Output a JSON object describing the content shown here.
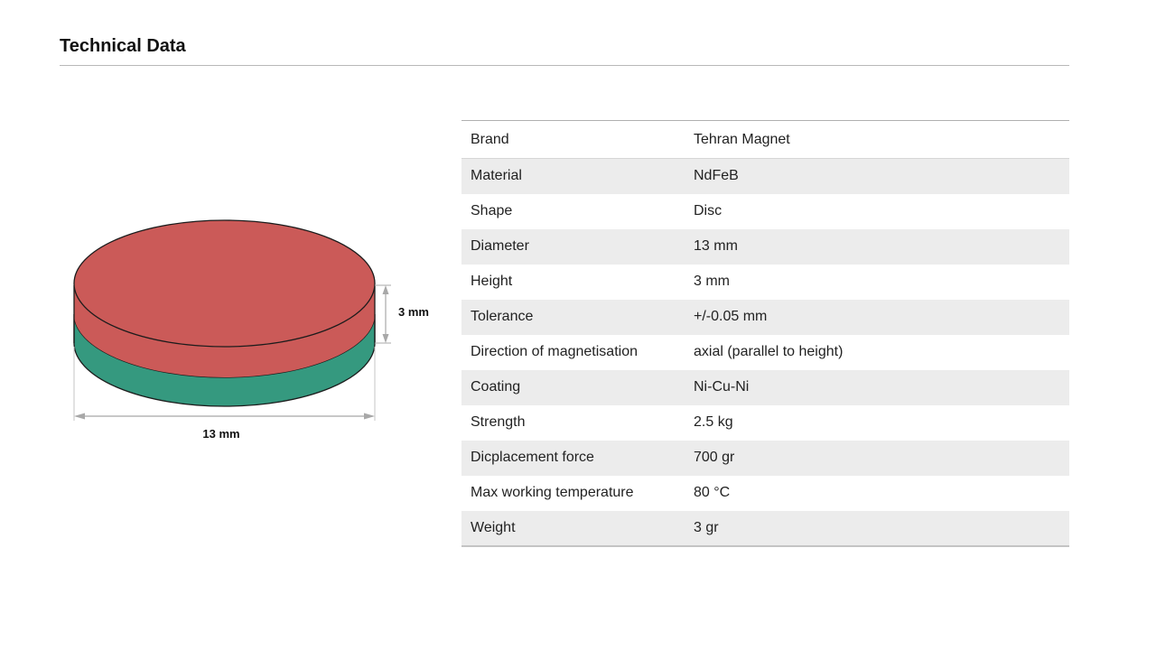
{
  "page": {
    "title": "Technical Data"
  },
  "figure": {
    "shape": "disc-magnet",
    "top_color": "#cb5a58",
    "bottom_color": "#35997f",
    "height_label": "3 mm",
    "diameter_label": "13 mm"
  },
  "specs": [
    {
      "label": "Brand",
      "value": "Tehran Magnet"
    },
    {
      "label": "Material",
      "value": "NdFeB"
    },
    {
      "label": "Shape",
      "value": "Disc"
    },
    {
      "label": "Diameter",
      "value": "13 mm"
    },
    {
      "label": "Height",
      "value": "3 mm"
    },
    {
      "label": "Tolerance",
      "value": "+/-0.05 mm"
    },
    {
      "label": "Direction of magnetisation",
      "value": "axial (parallel to height)"
    },
    {
      "label": "Coating",
      "value": "Ni-Cu-Ni"
    },
    {
      "label": "Strength",
      "value": "2.5 kg"
    },
    {
      "label": "Dicplacement force",
      "value": "700 gr"
    },
    {
      "label": "Max working temperature",
      "value": "80 °C"
    },
    {
      "label": "Weight",
      "value": "3 gr"
    }
  ]
}
